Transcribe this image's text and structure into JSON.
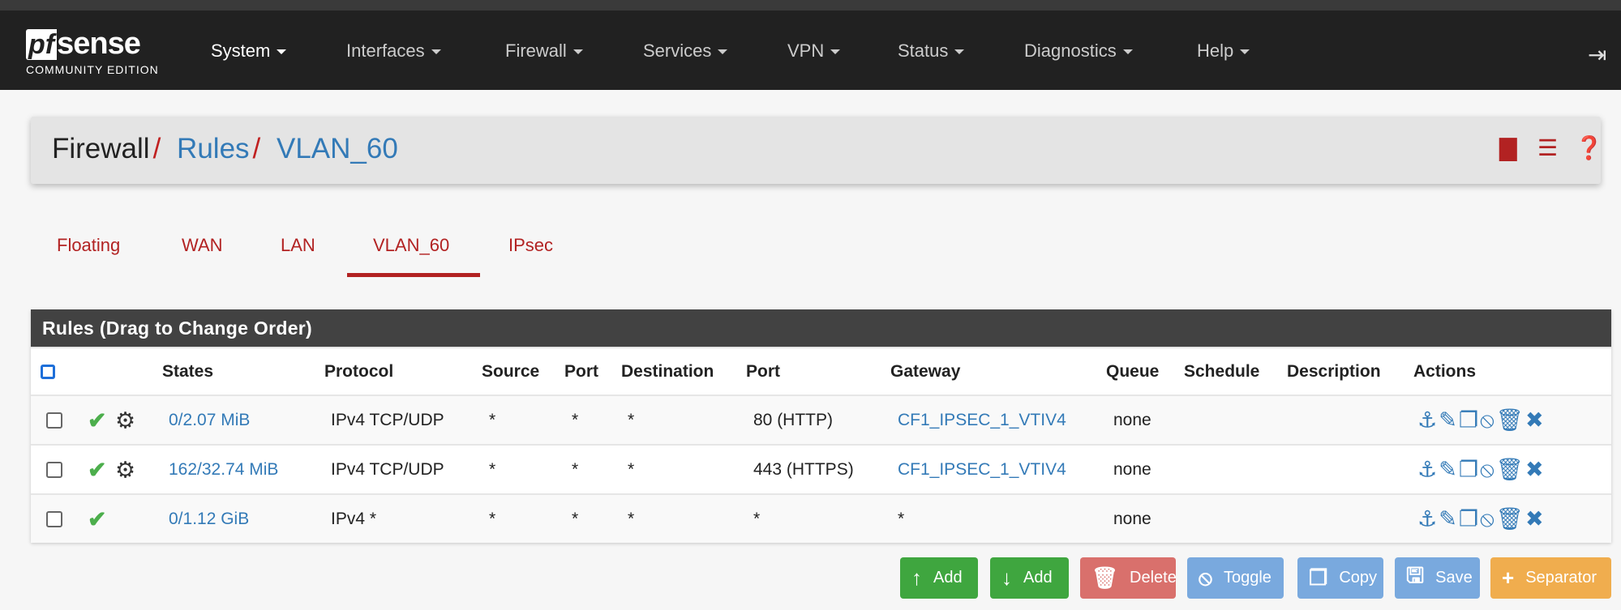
{
  "nav": {
    "logo_pf": "pf",
    "logo_sense": "sense",
    "logo_edition": "COMMUNITY EDITION",
    "items": [
      "System",
      "Interfaces",
      "Firewall",
      "Services",
      "VPN",
      "Status",
      "Diagnostics",
      "Help"
    ]
  },
  "breadcrumb": {
    "root": "Firewall",
    "rules": "Rules",
    "current": "VLAN_60"
  },
  "tabs": [
    "Floating",
    "WAN",
    "LAN",
    "VLAN_60",
    "IPsec"
  ],
  "active_tab": "VLAN_60",
  "panel": {
    "title": "Rules (Drag to Change Order)",
    "headers": [
      "States",
      "Protocol",
      "Source",
      "Port",
      "Destination",
      "Port",
      "Gateway",
      "Queue",
      "Schedule",
      "Description",
      "Actions"
    ],
    "rows": [
      {
        "states": "0/2.07 MiB",
        "protocol": "IPv4 TCP/UDP",
        "source": "*",
        "sport": "*",
        "dest": "*",
        "dport": "80 (HTTP)",
        "gateway": "CF1_IPSEC_1_VTIV4",
        "queue": "none",
        "schedule": "",
        "description": "",
        "gear": true
      },
      {
        "states": "162/32.74 MiB",
        "protocol": "IPv4 TCP/UDP",
        "source": "*",
        "sport": "*",
        "dest": "*",
        "dport": "443 (HTTPS)",
        "gateway": "CF1_IPSEC_1_VTIV4",
        "queue": "none",
        "schedule": "",
        "description": "",
        "gear": true
      },
      {
        "states": "0/1.12 GiB",
        "protocol": "IPv4 *",
        "source": "*",
        "sport": "*",
        "dest": "*",
        "dport": "*",
        "gateway": "*",
        "queue": "none",
        "schedule": "",
        "description": "",
        "gear": false
      }
    ]
  },
  "buttons": {
    "add_top": "Add",
    "add_bottom": "Add",
    "delete": "Delete",
    "toggle": "Toggle",
    "copy": "Copy",
    "save": "Save",
    "separator": "Separator"
  },
  "colors": {
    "accent": "#b22222",
    "link": "#337ab7",
    "success": "#4cae4c",
    "danger": "#d9534f",
    "info": "#5bc0de",
    "primary": "#5b9bd5",
    "warning": "#f0ad4e"
  }
}
